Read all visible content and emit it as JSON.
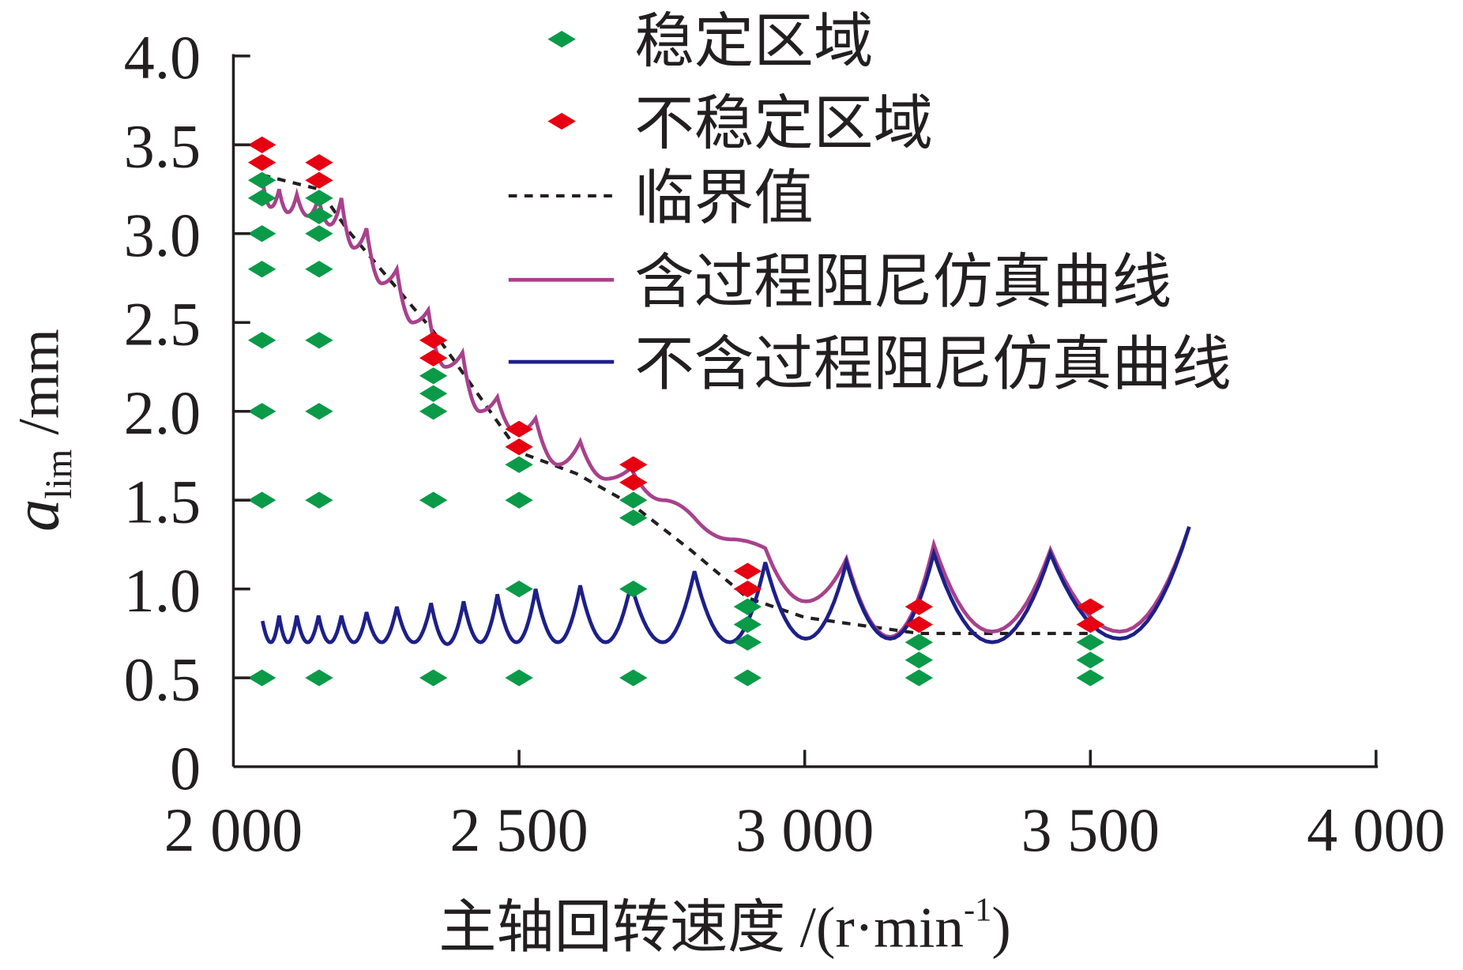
{
  "chart_data": {
    "type": "scatter",
    "title": "",
    "xlabel": "主轴回转速度 /(r·min⁻¹)",
    "xlabel_main": "主轴回转速度 /(r·min",
    "xlabel_sup": "-1",
    "xlabel_close": ")",
    "ylabel_var": "a",
    "ylabel_sub": "lim",
    "ylabel_unit": " /mm",
    "xlim": [
      2000,
      4000
    ],
    "ylim": [
      0,
      4.0
    ],
    "xticks": [
      2000,
      2500,
      3000,
      3500,
      4000
    ],
    "xtick_labels": [
      "2 000",
      "2 500",
      "3 000",
      "3 500",
      "4 000"
    ],
    "yticks": [
      0,
      0.5,
      1.0,
      1.5,
      2.0,
      2.5,
      3.0,
      3.5,
      4.0
    ],
    "ytick_labels": [
      "0",
      "0.5",
      "1.0",
      "1.5",
      "2.0",
      "2.5",
      "3.0",
      "3.5",
      "4.0"
    ],
    "legend_position": "top-right",
    "series": [
      {
        "name": "稳定区域",
        "kind": "markers",
        "color": "#0a9a48",
        "points": [
          [
            2050,
            0.5
          ],
          [
            2050,
            1.5
          ],
          [
            2050,
            2.0
          ],
          [
            2050,
            2.4
          ],
          [
            2050,
            2.8
          ],
          [
            2050,
            3.0
          ],
          [
            2050,
            3.2
          ],
          [
            2050,
            3.3
          ],
          [
            2150,
            0.5
          ],
          [
            2150,
            1.5
          ],
          [
            2150,
            2.0
          ],
          [
            2150,
            2.4
          ],
          [
            2150,
            2.8
          ],
          [
            2150,
            3.0
          ],
          [
            2150,
            3.1
          ],
          [
            2150,
            3.2
          ],
          [
            2350,
            0.5
          ],
          [
            2350,
            1.5
          ],
          [
            2350,
            2.0
          ],
          [
            2350,
            2.1
          ],
          [
            2350,
            2.2
          ],
          [
            2500,
            0.5
          ],
          [
            2500,
            1.0
          ],
          [
            2500,
            1.5
          ],
          [
            2500,
            1.7
          ],
          [
            2700,
            0.5
          ],
          [
            2700,
            1.0
          ],
          [
            2700,
            1.4
          ],
          [
            2700,
            1.5
          ],
          [
            2900,
            0.5
          ],
          [
            2900,
            0.7
          ],
          [
            2900,
            0.8
          ],
          [
            2900,
            0.9
          ],
          [
            3200,
            0.5
          ],
          [
            3200,
            0.6
          ],
          [
            3200,
            0.7
          ],
          [
            3500,
            0.5
          ],
          [
            3500,
            0.6
          ],
          [
            3500,
            0.7
          ]
        ]
      },
      {
        "name": "不稳定区域",
        "kind": "markers",
        "color": "#e60012",
        "points": [
          [
            2050,
            3.4
          ],
          [
            2050,
            3.5
          ],
          [
            2150,
            3.3
          ],
          [
            2150,
            3.4
          ],
          [
            2350,
            2.3
          ],
          [
            2350,
            2.4
          ],
          [
            2500,
            1.8
          ],
          [
            2500,
            1.9
          ],
          [
            2700,
            1.6
          ],
          [
            2700,
            1.7
          ],
          [
            2900,
            1.0
          ],
          [
            2900,
            1.1
          ],
          [
            3200,
            0.8
          ],
          [
            3200,
            0.9
          ],
          [
            3500,
            0.8
          ],
          [
            3500,
            0.9
          ]
        ]
      },
      {
        "name": "临界值",
        "kind": "dashed",
        "color": "#231f20",
        "points": [
          [
            2050,
            3.33
          ],
          [
            2150,
            3.25
          ],
          [
            2200,
            3.02
          ],
          [
            2350,
            2.45
          ],
          [
            2500,
            1.77
          ],
          [
            2600,
            1.65
          ],
          [
            2700,
            1.47
          ],
          [
            2800,
            1.22
          ],
          [
            2900,
            0.95
          ],
          [
            3000,
            0.84
          ],
          [
            3200,
            0.75
          ],
          [
            3500,
            0.75
          ]
        ]
      },
      {
        "name": "含过程阻尼仿真曲线",
        "kind": "lobes",
        "color": "#a8418c",
        "cusps": [
          [
            2051,
            3.3
          ],
          [
            2080,
            3.25
          ],
          [
            2111,
            3.22
          ],
          [
            2149,
            3.2
          ],
          [
            2189,
            3.2
          ],
          [
            2233,
            3.03
          ],
          [
            2286,
            2.8
          ],
          [
            2341,
            2.57
          ],
          [
            2401,
            2.33
          ],
          [
            2462,
            2.08
          ],
          [
            2529,
            1.96
          ],
          [
            2607,
            1.83
          ],
          [
            2696,
            1.68
          ],
          [
            2807,
            1.4
          ],
          [
            2931,
            1.23
          ],
          [
            3073,
            1.17
          ],
          [
            3226,
            1.25
          ],
          [
            3430,
            1.22
          ],
          [
            3673,
            1.35
          ]
        ],
        "minima": [
          3.15,
          3.12,
          3.1,
          3.05,
          2.92,
          2.72,
          2.5,
          2.25,
          2.0,
          1.88,
          1.7,
          1.62,
          1.5,
          1.28,
          0.93,
          0.73,
          0.76,
          0.76,
          0.78
        ]
      },
      {
        "name": "不含过程阻尼仿真曲线",
        "kind": "lobes",
        "color": "#1d2088",
        "cusps": [
          [
            2051,
            0.82
          ],
          [
            2080,
            0.85
          ],
          [
            2111,
            0.85
          ],
          [
            2149,
            0.85
          ],
          [
            2189,
            0.85
          ],
          [
            2233,
            0.87
          ],
          [
            2286,
            0.9
          ],
          [
            2346,
            0.92
          ],
          [
            2403,
            0.93
          ],
          [
            2462,
            0.97
          ],
          [
            2529,
            1.0
          ],
          [
            2607,
            1.02
          ],
          [
            2696,
            1.03
          ],
          [
            2807,
            1.1
          ],
          [
            2931,
            1.15
          ],
          [
            3073,
            1.15
          ],
          [
            3226,
            1.2
          ],
          [
            3430,
            1.2
          ],
          [
            3673,
            1.35
          ]
        ],
        "minima": [
          0.7,
          0.7,
          0.7,
          0.7,
          0.7,
          0.7,
          0.7,
          0.69,
          0.7,
          0.7,
          0.7,
          0.7,
          0.7,
          0.7,
          0.72,
          0.72,
          0.7,
          0.72,
          0.72
        ]
      }
    ]
  }
}
